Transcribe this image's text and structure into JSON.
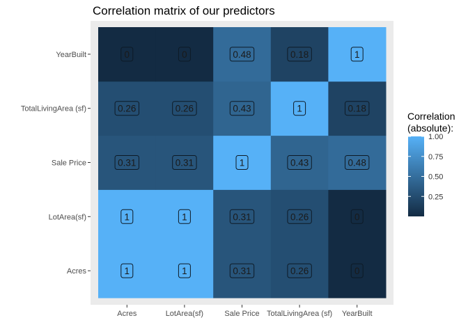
{
  "chart_data": {
    "type": "heatmap",
    "title": "Correlation matrix of our predictors",
    "x_categories": [
      "Acres",
      "LotArea(sf)",
      "Sale Price",
      "TotalLivingArea (sf)",
      "YearBuilt"
    ],
    "y_categories": [
      "Acres",
      "LotArea(sf)",
      "Sale Price",
      "TotalLivingArea (sf)",
      "YearBuilt"
    ],
    "values": [
      [
        1,
        1,
        0.31,
        0.26,
        0
      ],
      [
        1,
        1,
        0.31,
        0.26,
        0
      ],
      [
        0.31,
        0.31,
        1,
        0.43,
        0.48
      ],
      [
        0.26,
        0.26,
        0.43,
        1,
        0.18
      ],
      [
        0,
        0,
        0.48,
        0.18,
        1
      ]
    ],
    "value_labels": [
      [
        "1",
        "1",
        "0.31",
        "0.26",
        "0"
      ],
      [
        "1",
        "1",
        "0.31",
        "0.26",
        "0"
      ],
      [
        "0.31",
        "0.31",
        "1",
        "0.43",
        "0.48"
      ],
      [
        "0.26",
        "0.26",
        "0.43",
        "1",
        "0.18"
      ],
      [
        "0",
        "0",
        "0.48",
        "0.18",
        "1"
      ]
    ],
    "legend": {
      "title_lines": [
        "Correlation",
        "(absolute):"
      ],
      "ticks": [
        0.25,
        0.5,
        0.75,
        1.0
      ],
      "tick_labels": [
        "0.25",
        "0.50",
        "0.75",
        "1.00"
      ],
      "range": [
        0,
        1
      ],
      "low_color": "#132B43",
      "high_color": "#56B1F7",
      "placement": "right"
    },
    "panel_background": "#EBEBEB"
  }
}
